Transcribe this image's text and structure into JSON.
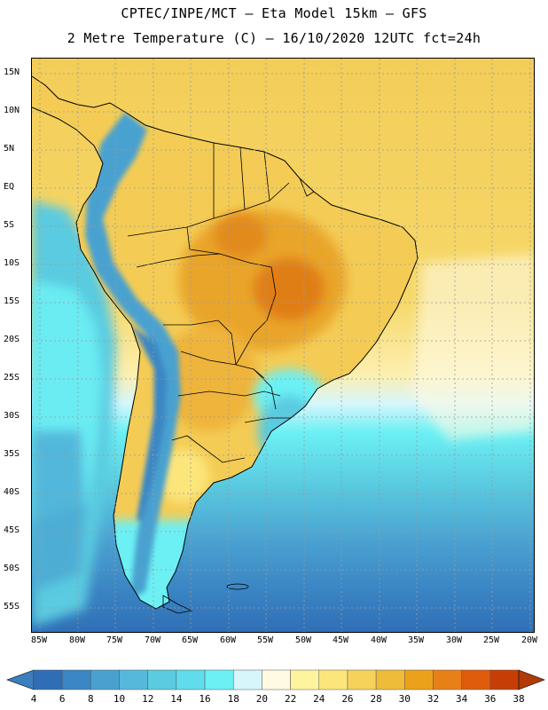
{
  "title": {
    "line1": "CPTEC/INPE/MCT –  Eta Model 15km – GFS",
    "line2": "2 Metre Temperature (C) – 16/10/2020 12UTC fct=24h"
  },
  "map": {
    "lat_labels": [
      "15N",
      "10N",
      "5N",
      "EQ",
      "5S",
      "10S",
      "15S",
      "20S",
      "25S",
      "30S",
      "35S",
      "40S",
      "45S",
      "50S",
      "55S"
    ],
    "lon_labels": [
      "85W",
      "80W",
      "75W",
      "70W",
      "65W",
      "60W",
      "55W",
      "50W",
      "45W",
      "40W",
      "35W",
      "30W",
      "25W",
      "20W"
    ]
  },
  "legend": {
    "unit": "C",
    "tick_labels": [
      "4",
      "6",
      "8",
      "10",
      "12",
      "14",
      "16",
      "18",
      "20",
      "22",
      "24",
      "26",
      "28",
      "30",
      "32",
      "34",
      "36",
      "38"
    ],
    "colors": [
      "#2f6eb6",
      "#3b86c4",
      "#4aa1d0",
      "#56b9dc",
      "#5acbe0",
      "#60dcec",
      "#6cf0f4",
      "#d6f6fc",
      "#fefae4",
      "#fef49e",
      "#fce67c",
      "#f6d25a",
      "#efbc3a",
      "#eba21a",
      "#e88018",
      "#de5c0c",
      "#c63e06"
    ],
    "under_color": "#3a7fbe",
    "over_color": "#b23a06"
  }
}
